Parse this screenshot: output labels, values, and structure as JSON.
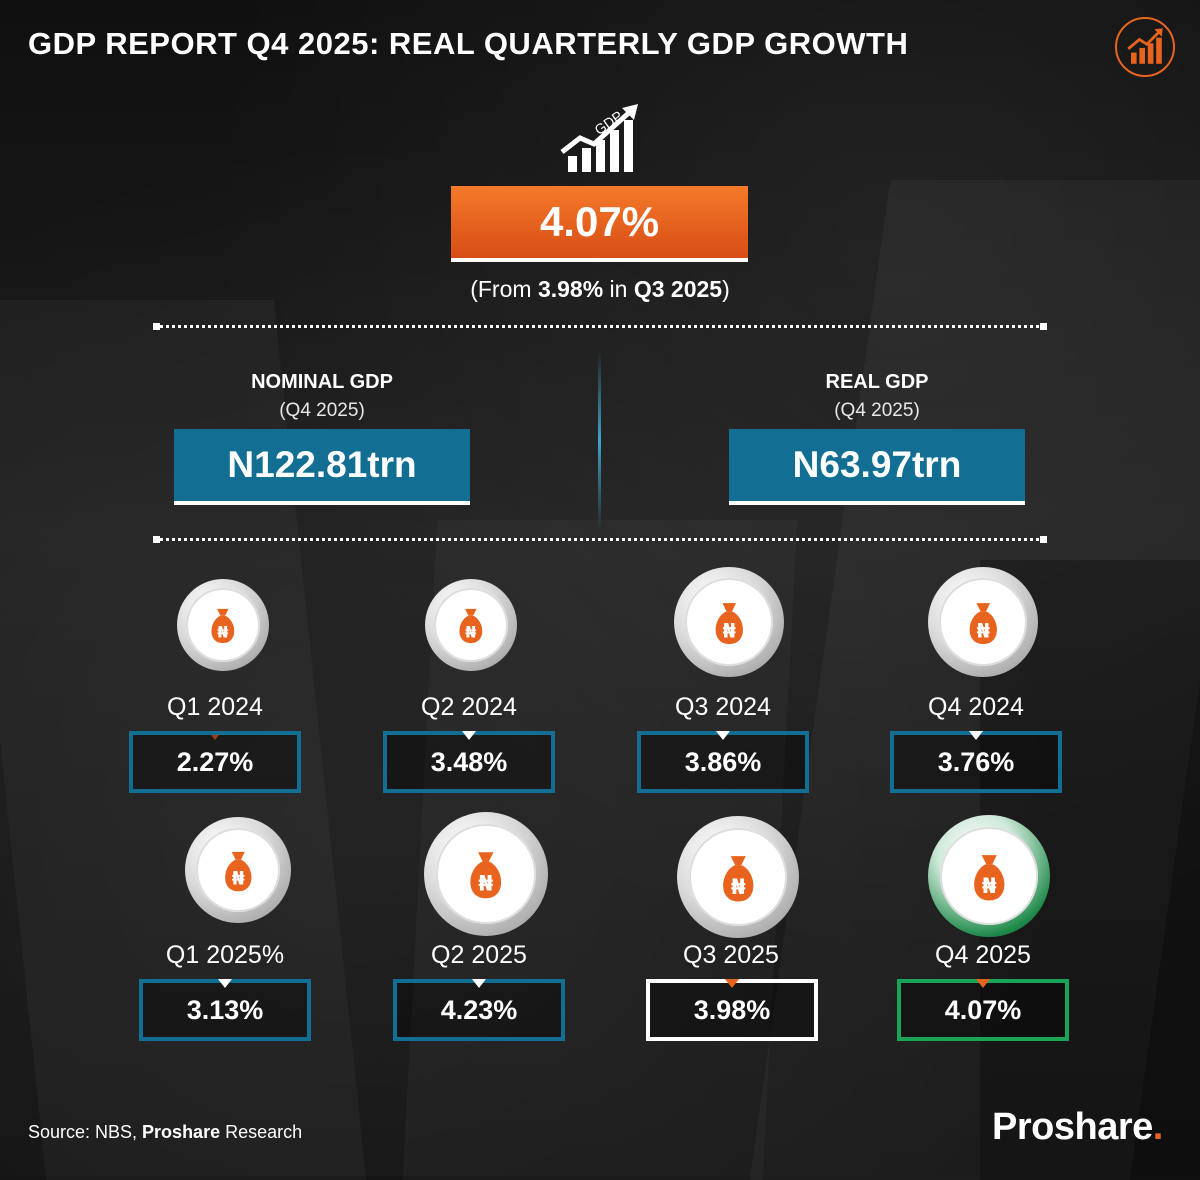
{
  "header": {
    "title": "GDP REPORT Q4 2025: REAL QUARTERLY GDP GROWTH",
    "badge_icon": "bar-chart-arrow-icon"
  },
  "headline": {
    "icon": "gdp-growth-chart-icon",
    "icon_text": "GDP",
    "value": "4.07%",
    "from_prefix": "(From ",
    "from_value": "3.98%",
    "from_mid": " in ",
    "from_period": "Q3 2025",
    "from_suffix": ")"
  },
  "nominal": {
    "label": "NOMINAL GDP",
    "period": "(Q4 2025)",
    "value": "N122.81trn"
  },
  "real": {
    "label": "REAL GDP",
    "period": "(Q4 2025)",
    "value": "N63.97trn"
  },
  "colors": {
    "accent_orange": "#e8641e",
    "accent_blue": "#126f93",
    "accent_green": "#1aa556"
  },
  "quarters": [
    {
      "label": "Q1 2024",
      "value": "2.27%",
      "icon": "naira-money-bag-icon"
    },
    {
      "label": "Q2 2024",
      "value": "3.48%",
      "icon": "naira-money-bag-icon"
    },
    {
      "label": "Q3 2024",
      "value": "3.86%",
      "icon": "naira-money-bag-icon"
    },
    {
      "label": "Q4 2024",
      "value": "3.76%",
      "icon": "naira-money-bag-icon"
    },
    {
      "label": "Q1 2025%",
      "value": "3.13%",
      "icon": "naira-money-bag-icon"
    },
    {
      "label": "Q2 2025",
      "value": "4.23%",
      "icon": "naira-money-bag-icon"
    },
    {
      "label": "Q3 2025",
      "value": "3.98%",
      "icon": "naira-money-bag-icon"
    },
    {
      "label": "Q4 2025",
      "value": "4.07%",
      "icon": "naira-money-bag-icon"
    }
  ],
  "footer": {
    "source_prefix": "Source: NBS, ",
    "source_bold": "Proshare",
    "source_suffix": " Research",
    "brand": "Proshare",
    "brand_dot": "."
  }
}
